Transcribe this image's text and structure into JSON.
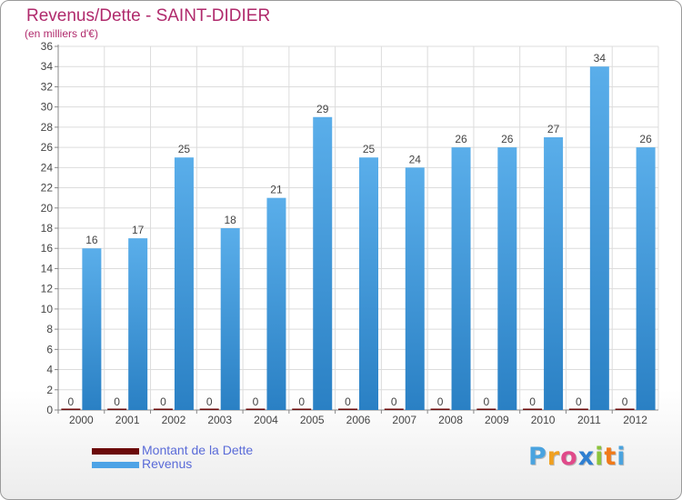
{
  "title": "Revenus/Dette - SAINT-DIDIER",
  "subtitle": "(en milliers d'€)",
  "chart_data": {
    "type": "bar",
    "categories": [
      "2000",
      "2001",
      "2002",
      "2003",
      "2004",
      "2005",
      "2006",
      "2007",
      "2008",
      "2009",
      "2010",
      "2011",
      "2012"
    ],
    "series": [
      {
        "name": "Montant de la Dette",
        "color": "#6b0a0a",
        "values": [
          0,
          0,
          0,
          0,
          0,
          0,
          0,
          0,
          0,
          0,
          0,
          0,
          0
        ]
      },
      {
        "name": "Revenus",
        "color": "#4ea3e6",
        "values": [
          16,
          17,
          25,
          18,
          21,
          29,
          25,
          24,
          26,
          26,
          27,
          34,
          26
        ]
      }
    ],
    "ylim": [
      0,
      36
    ],
    "yticks": [
      0,
      2,
      4,
      6,
      8,
      10,
      12,
      14,
      16,
      18,
      20,
      22,
      24,
      26,
      28,
      30,
      32,
      34,
      36
    ],
    "grid": true,
    "legend_position": "bottom-left"
  },
  "legend": [
    {
      "label": "Montant de la Dette",
      "color": "#6b0a0a"
    },
    {
      "label": "Revenus",
      "color": "#4ea3e6"
    }
  ],
  "logo": {
    "text": "Proxiti",
    "letters": [
      {
        "ch": "P",
        "color": "#4aa3df"
      },
      {
        "ch": "r",
        "color": "#f0a020"
      },
      {
        "ch": "o",
        "color": "#e04a8a"
      },
      {
        "ch": "x",
        "color": "#2f7fd1"
      },
      {
        "ch": "i",
        "color": "#8cc43c"
      },
      {
        "ch": "t",
        "color": "#f07a1a"
      },
      {
        "ch": "i",
        "color": "#4aa3df"
      }
    ]
  }
}
